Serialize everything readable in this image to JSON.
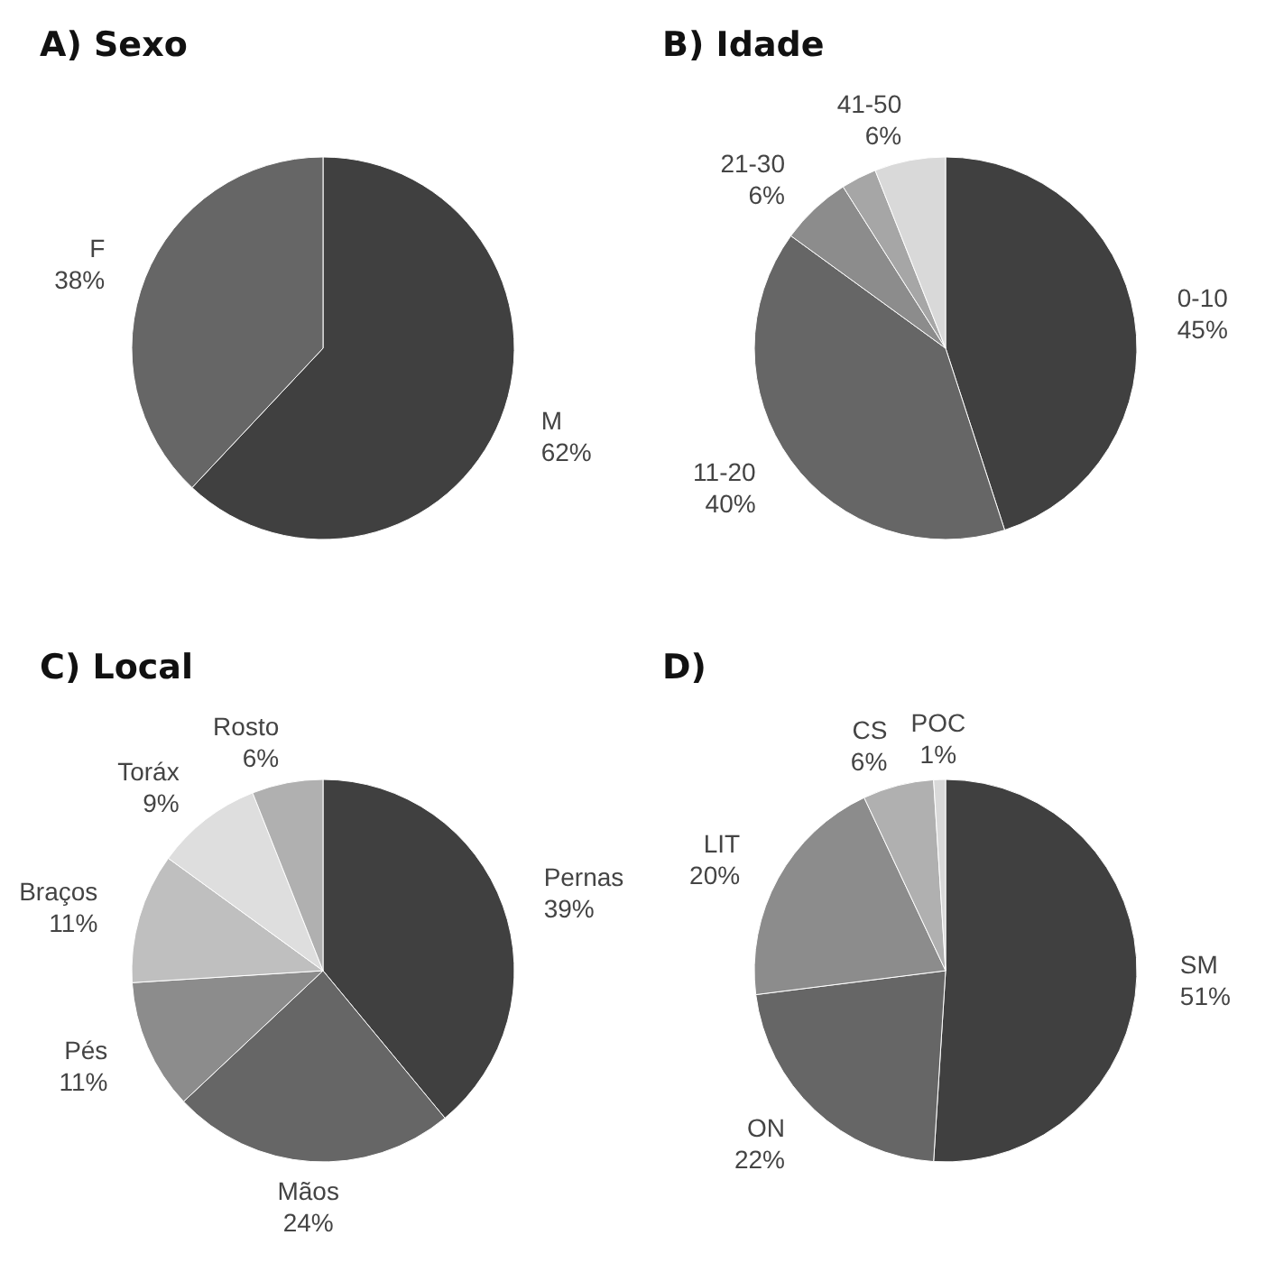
{
  "chart_data": [
    {
      "type": "pie",
      "title": "A) Sexo",
      "categories": [
        "M",
        "F"
      ],
      "values": [
        62,
        38
      ],
      "colors": [
        "#404040",
        "#666666"
      ],
      "value_labels": [
        "62%",
        "38%"
      ]
    },
    {
      "type": "pie",
      "title": "B) Idade",
      "categories": [
        "0-10",
        "11-20",
        "21-30",
        null,
        "41-50"
      ],
      "values": [
        45,
        40,
        6,
        3,
        6
      ],
      "colors": [
        "#404040",
        "#666666",
        "#8c8c8c",
        "#a6a6a6",
        "#d9d9d9"
      ],
      "value_labels": [
        "45%",
        "40%",
        "6%",
        null,
        "6%"
      ]
    },
    {
      "type": "pie",
      "title": "C) Local",
      "categories": [
        "Pernas",
        "Mãos",
        "Pés",
        "Braços",
        "Toráx",
        "Rosto"
      ],
      "values": [
        39,
        24,
        11,
        11,
        9,
        6
      ],
      "colors": [
        "#404040",
        "#666666",
        "#8c8c8c",
        "#bfbfbf",
        "#dedede",
        "#b0b0b0"
      ],
      "value_labels": [
        "39%",
        "24%",
        "11%",
        "11%",
        "9%",
        "6%"
      ]
    },
    {
      "type": "pie",
      "title": "D)",
      "categories": [
        "SM",
        "ON",
        "LIT",
        "CS",
        "POC"
      ],
      "values": [
        51,
        22,
        20,
        6,
        1
      ],
      "colors": [
        "#404040",
        "#666666",
        "#8c8c8c",
        "#b0b0b0",
        "#d9d9d9"
      ],
      "value_labels": [
        "51%",
        "22%",
        "20%",
        "6%",
        "1%"
      ]
    }
  ]
}
